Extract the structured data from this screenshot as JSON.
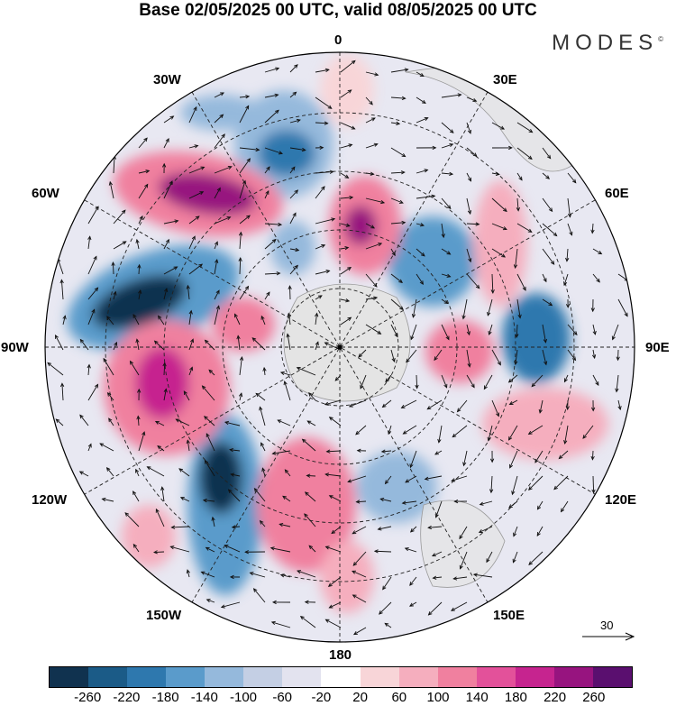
{
  "title": "Base 02/05/2025 00 UTC, valid 08/05/2025 00 UTC",
  "brand": "MODES",
  "brand_mark": "©",
  "longitude_labels": {
    "north": "0",
    "ne30": "30E",
    "ne60": "60E",
    "east": "90E",
    "se120": "120E",
    "se150": "150E",
    "south": "180",
    "sw150": "150W",
    "sw120": "120W",
    "west": "90W",
    "nw60": "60W",
    "nw30": "30W"
  },
  "reference_vector": {
    "label": "30"
  },
  "colorbar": {
    "colors": [
      "#10324f",
      "#1b5b87",
      "#2e78ae",
      "#5a9bcb",
      "#95b9dc",
      "#c4cfe4",
      "#e3e3ef",
      "#ffffff",
      "#f8d5d8",
      "#f5aebe",
      "#f0809f",
      "#e3519a",
      "#c6248f",
      "#97147f",
      "#5a0f6f"
    ],
    "tick_labels": [
      "-260",
      "-220",
      "-180",
      "-140",
      "-100",
      "-60",
      "-20",
      "20",
      "60",
      "100",
      "140",
      "180",
      "220",
      "260"
    ]
  },
  "anomaly_blobs": [
    {
      "color": "#5a9bcb",
      "intensity": "-140"
    },
    {
      "color": "#e3519a",
      "intensity": "180"
    }
  ]
}
